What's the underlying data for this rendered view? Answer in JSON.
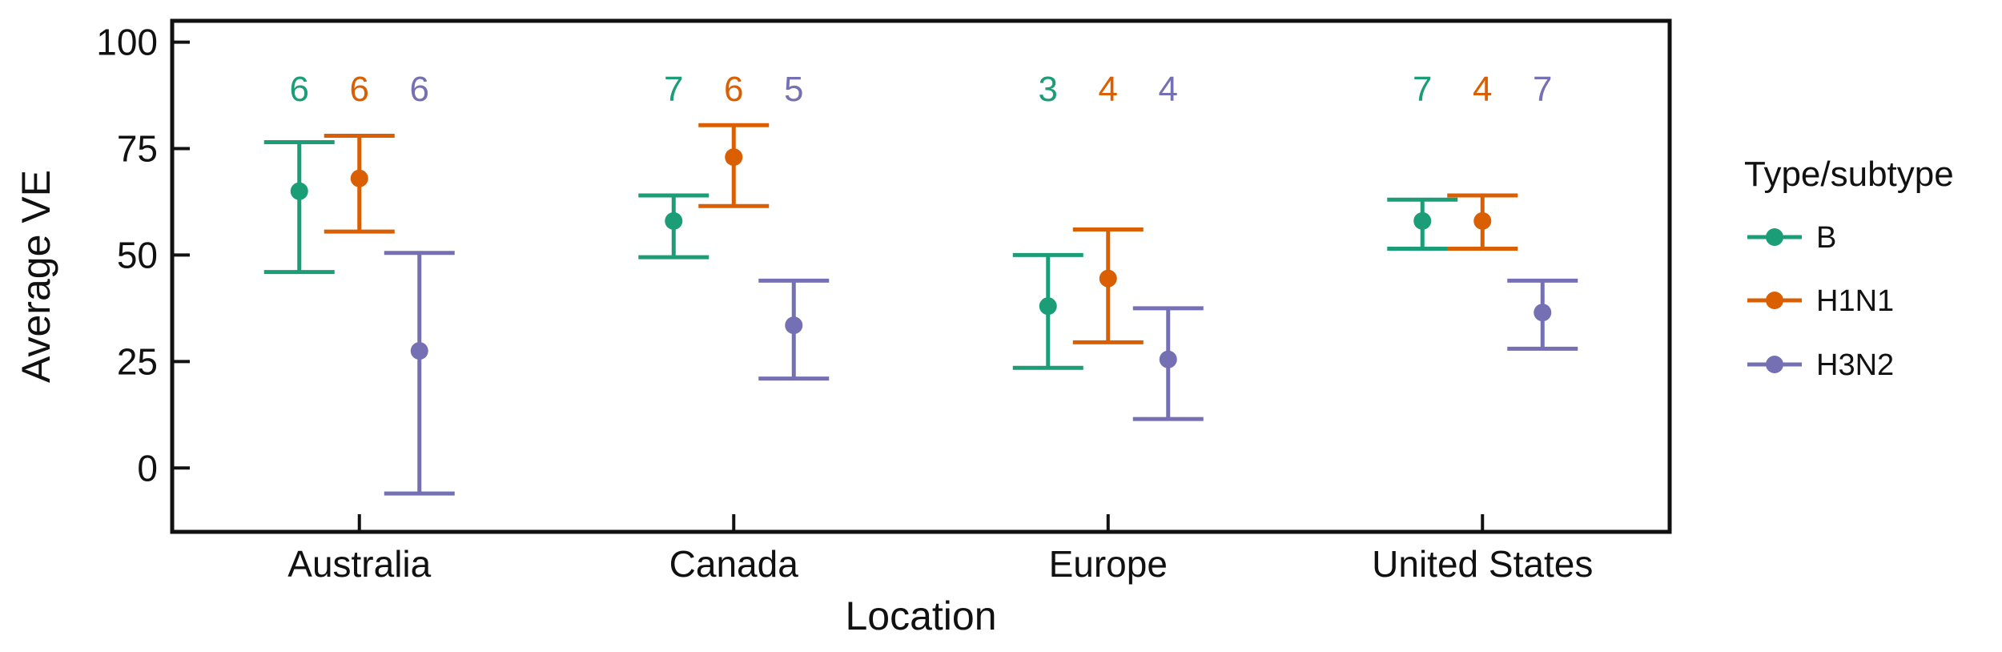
{
  "chart_data": {
    "type": "errorbar",
    "title": "",
    "xlabel": "Location",
    "ylabel": "Average VE",
    "ylim": [
      -15,
      105
    ],
    "yticks": [
      0,
      25,
      50,
      75,
      100
    ],
    "categories": [
      "Australia",
      "Canada",
      "Europe",
      "United States"
    ],
    "legend": {
      "title": "Type/subtype",
      "position": "right"
    },
    "grid": false,
    "series": [
      {
        "name": "B",
        "color": "#1b9e77",
        "values": [
          65,
          58,
          38,
          58
        ],
        "lower": [
          46,
          49.5,
          23.5,
          51.5
        ],
        "upper": [
          76.5,
          64,
          50,
          63
        ],
        "n": [
          "6",
          "7",
          "3",
          "7"
        ]
      },
      {
        "name": "H1N1",
        "color": "#d95f02",
        "values": [
          68,
          73,
          44.5,
          58
        ],
        "lower": [
          55.5,
          61.5,
          29.5,
          51.5
        ],
        "upper": [
          78,
          80.5,
          56,
          64
        ],
        "n": [
          "6",
          "6",
          "4",
          "4"
        ]
      },
      {
        "name": "H3N2",
        "color": "#7570b3",
        "values": [
          27.5,
          33.5,
          25.5,
          36.5
        ],
        "lower": [
          -6,
          21,
          11.5,
          28
        ],
        "upper": [
          50.5,
          44,
          37.5,
          44
        ],
        "n": [
          "6",
          "5",
          "4",
          "7"
        ]
      }
    ]
  }
}
